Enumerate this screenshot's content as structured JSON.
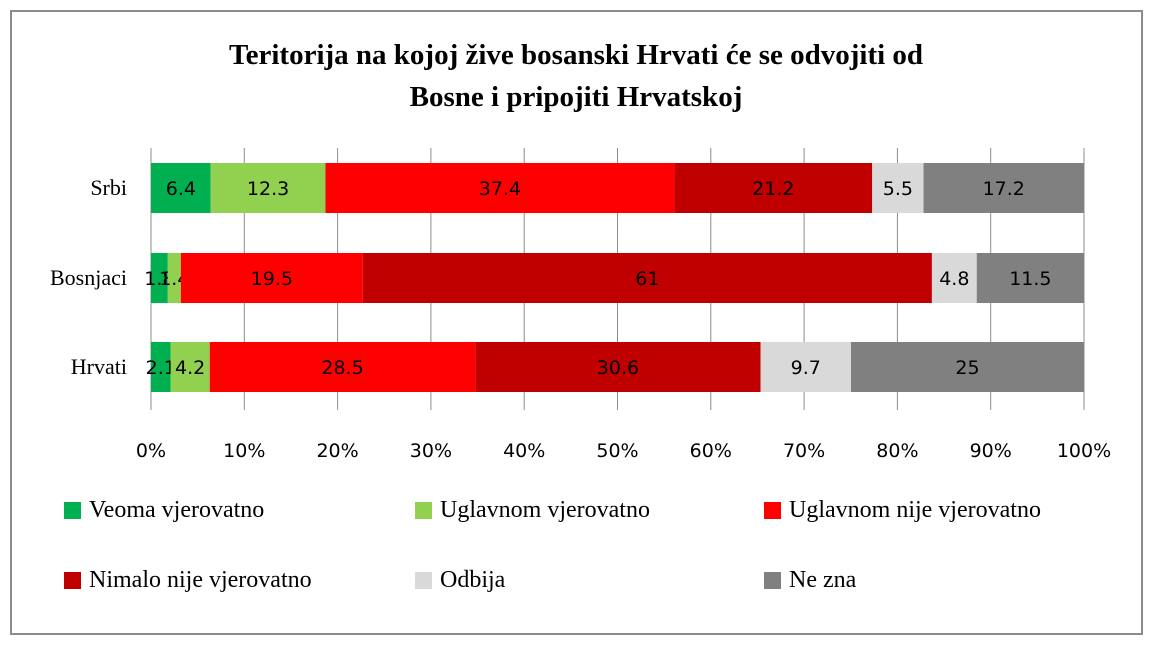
{
  "chart_data": {
    "type": "bar",
    "orientation": "horizontal",
    "stacked": "percent",
    "title": "Teritorija na kojoj žive bosanski Hrvati će se odvojiti od Bosne i pripojiti Hrvatskoj",
    "title_lines": [
      "Teritorija na kojoj žive bosanski Hrvati će se odvojiti od",
      "Bosne i pripojiti Hrvatskoj"
    ],
    "categories": [
      "Srbi",
      "Bosnjaci",
      "Hrvati"
    ],
    "series": [
      {
        "name": "Veoma vjerovatno",
        "color": "#00b050",
        "values": [
          6.4,
          1.8,
          2.1
        ]
      },
      {
        "name": "Uglavnom vjerovatno",
        "color": "#92d050",
        "values": [
          12.3,
          1.4,
          4.2
        ]
      },
      {
        "name": "Uglavnom nije vjerovatno",
        "color": "#ff0000",
        "values": [
          37.4,
          19.5,
          28.5
        ]
      },
      {
        "name": "Nimalo nije vjerovatno",
        "color": "#c00000",
        "values": [
          21.2,
          61,
          30.6
        ]
      },
      {
        "name": "Odbija",
        "color": "#d9d9d9",
        "values": [
          5.5,
          4.8,
          9.7
        ]
      },
      {
        "name": "Ne zna",
        "color": "#808080",
        "values": [
          17.2,
          11.5,
          25
        ]
      }
    ],
    "data_labels": [
      [
        "6.4",
        "1.8",
        "2.1"
      ],
      [
        "12.3",
        "1.4",
        "4.2"
      ],
      [
        "37.4",
        "19.5",
        "28.5"
      ],
      [
        "21.2",
        "61",
        "30.6"
      ],
      [
        "5.5",
        "4.8",
        "9.7"
      ],
      [
        "17.2",
        "11.5",
        "25"
      ]
    ],
    "xlim": [
      0,
      100
    ],
    "xticks": [
      "0%",
      "10%",
      "20%",
      "30%",
      "40%",
      "50%",
      "60%",
      "70%",
      "80%",
      "90%",
      "100%"
    ],
    "grid": true,
    "legend_position": "bottom"
  }
}
